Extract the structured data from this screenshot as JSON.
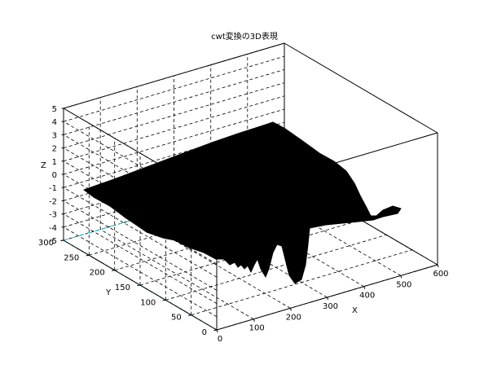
{
  "chart_data": {
    "type": "surface3d",
    "title": "cwt変換の3D表現",
    "xlabel": "X",
    "ylabel": "Y",
    "zlabel": "Z",
    "xlim": [
      0,
      600
    ],
    "ylim": [
      0,
      300
    ],
    "zlim": [
      -5,
      5
    ],
    "x_ticks": [
      "0",
      "100",
      "200",
      "300",
      "400",
      "500",
      "600"
    ],
    "y_ticks": [
      "0",
      "50",
      "100",
      "150",
      "200",
      "250",
      "300"
    ],
    "z_ticks": [
      "-5",
      "-4",
      "-3",
      "-2",
      "-1",
      "0",
      "1",
      "2",
      "3",
      "4",
      "5"
    ],
    "grid": true,
    "surface_color": "#000000",
    "highlight_grid_color": "#00c8d8"
  }
}
